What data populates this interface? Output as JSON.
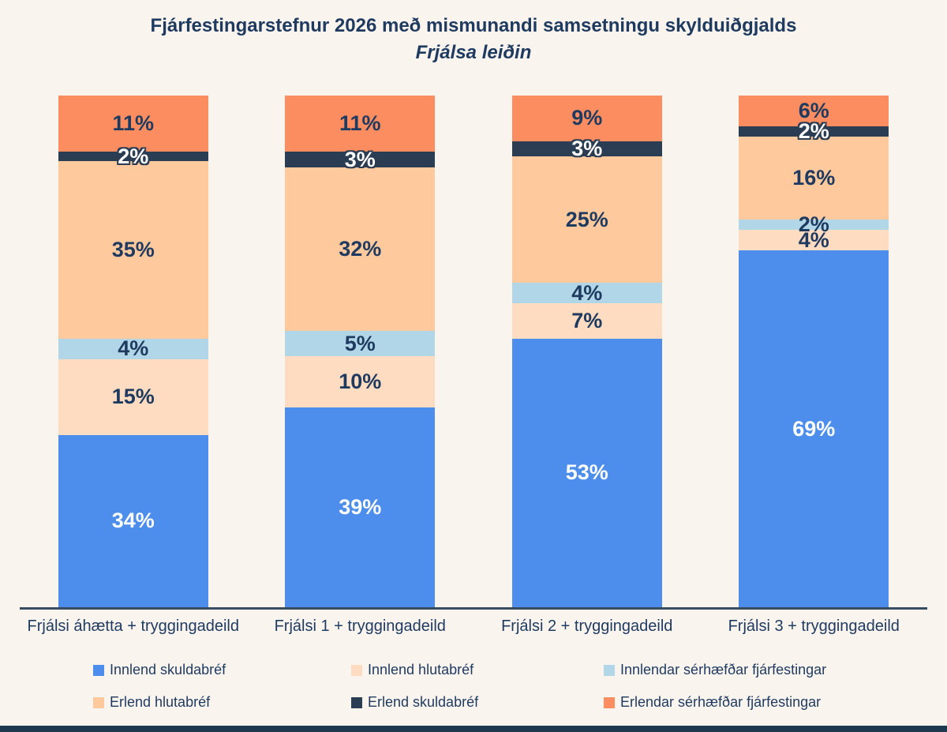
{
  "title": "Fjárfestingarstefnur 2026 með mismunandi samsetningu skylduiðgjalds",
  "subtitle": "Frjálsa leiðin",
  "colors": {
    "background": "#faf4ef",
    "text_dark": "#1f3a5f",
    "axis_line": "#394b5e",
    "footer_bar": "#1e3850"
  },
  "chart_data": {
    "type": "bar",
    "stacked": true,
    "orientation": "vertical",
    "grid": false,
    "ylim": [
      0,
      100
    ],
    "value_suffix": "%",
    "legend_position": "bottom",
    "categories": [
      "Frjálsi áhætta + tryggingadeild",
      "Frjálsi 1 + tryggingadeild",
      "Frjálsi 2 + tryggingadeild",
      "Frjálsi 3 + tryggingadeild"
    ],
    "series": [
      {
        "name": "Innlend skuldabréf",
        "color": "#4d8eec",
        "label_color": "#ffffff",
        "outline": false,
        "values": [
          34,
          39,
          53,
          69
        ]
      },
      {
        "name": "Innlend hlutabréf",
        "color": "#fedcc1",
        "label_color": "#1f3a5f",
        "outline": false,
        "values": [
          15,
          10,
          7,
          4
        ]
      },
      {
        "name": "Innlendar sérhæfðar fjárfestingar",
        "color": "#b0d6e8",
        "label_color": "#1f3a5f",
        "outline": false,
        "values": [
          4,
          5,
          4,
          2
        ]
      },
      {
        "name": "Erlend hlutabréf",
        "color": "#fec99d",
        "label_color": "#1f3a5f",
        "outline": false,
        "values": [
          35,
          32,
          25,
          16
        ]
      },
      {
        "name": "Erlend skuldabréf",
        "color": "#2b3d52",
        "label_color": "#ffffff",
        "outline": true,
        "values": [
          2,
          3,
          3,
          2
        ]
      },
      {
        "name": "Erlendar sérhæfðar fjárfestingar",
        "color": "#fc8d61",
        "label_color": "#1f3a5f",
        "outline": false,
        "values": [
          11,
          11,
          9,
          6
        ]
      }
    ]
  }
}
